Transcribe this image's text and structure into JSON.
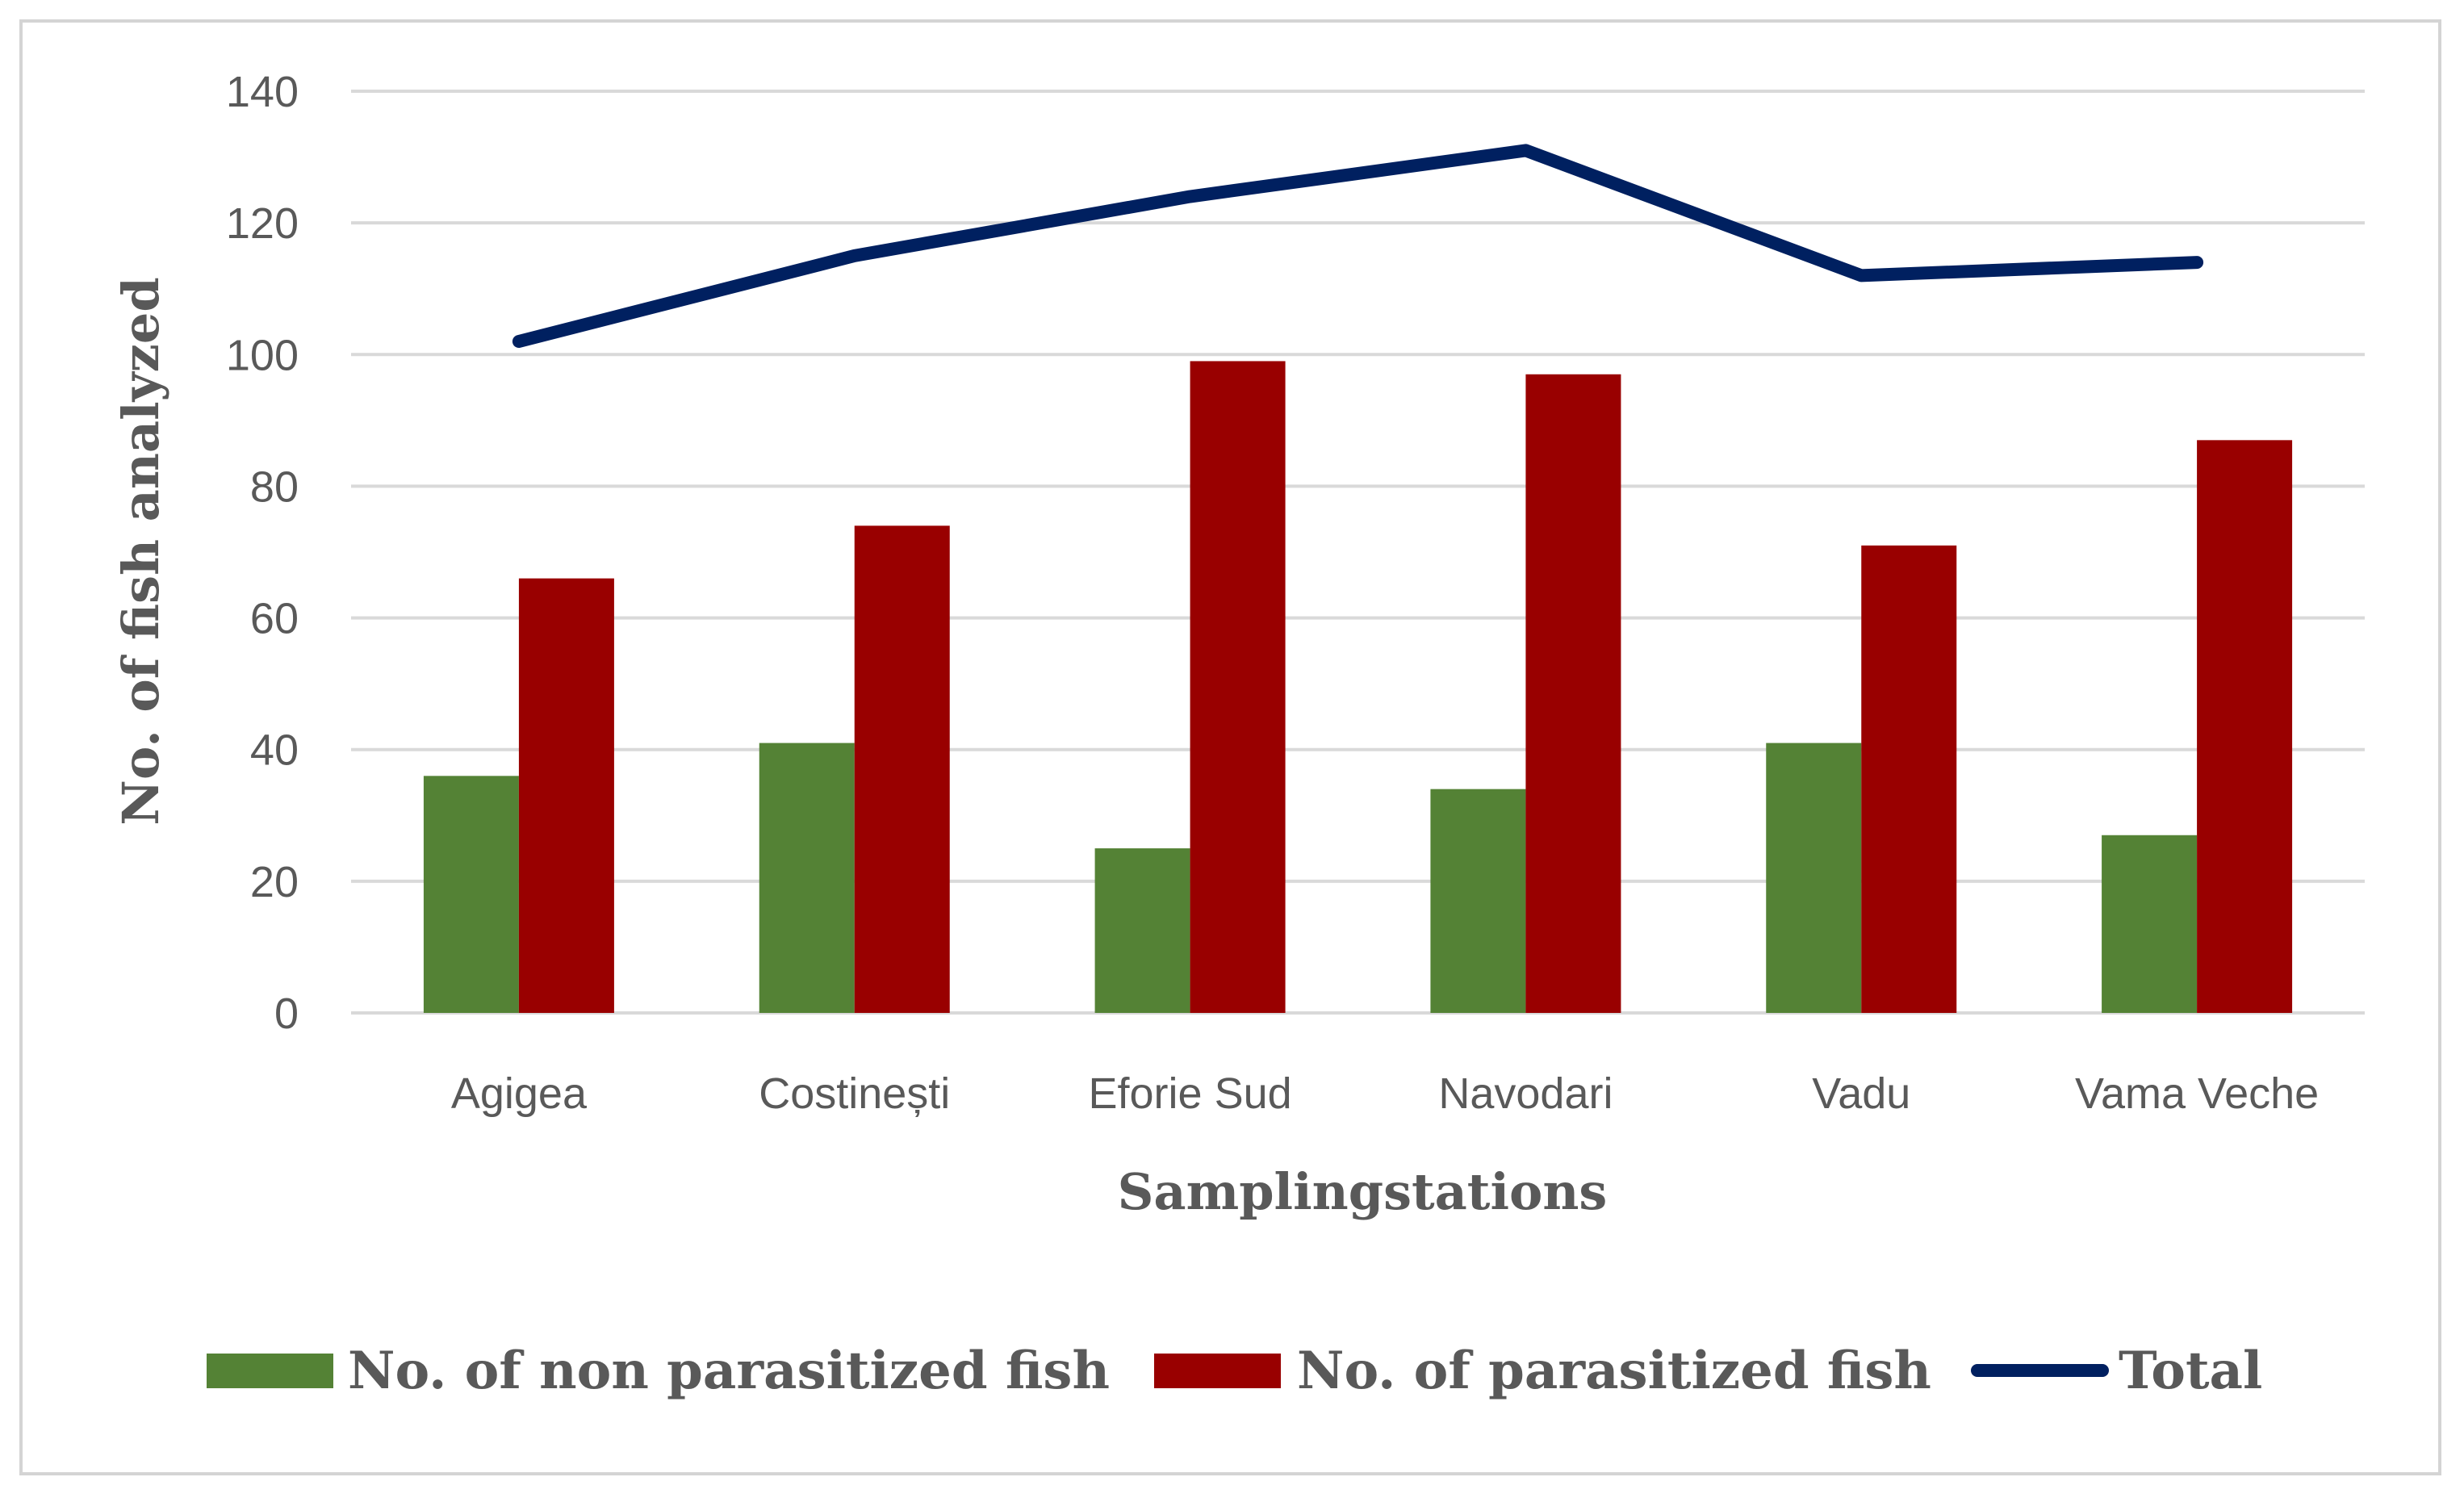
{
  "chart_data": {
    "type": "bar",
    "title": "",
    "xlabel": "Samplingstations",
    "ylabel": "No. of fish analyzed",
    "categories": [
      "Agigea",
      "Costinești",
      "Eforie Sud",
      "Navodari",
      "Vadu",
      "Vama Veche"
    ],
    "ylim": [
      0,
      140
    ],
    "yticks": [
      0,
      20,
      40,
      60,
      80,
      100,
      120,
      140
    ],
    "grid": true,
    "legend_position": "bottom",
    "series": [
      {
        "name": "No. of non parasitized fish",
        "kind": "bar",
        "color": "#548235",
        "values": [
          36,
          41,
          25,
          34,
          41,
          27
        ]
      },
      {
        "name": "No. of parasitized fish",
        "kind": "bar",
        "color": "#990000",
        "values": [
          66,
          74,
          99,
          97,
          71,
          87
        ]
      },
      {
        "name": "Total",
        "kind": "line",
        "color": "#002060",
        "values": [
          102,
          115,
          124,
          131,
          112,
          114
        ]
      }
    ]
  }
}
